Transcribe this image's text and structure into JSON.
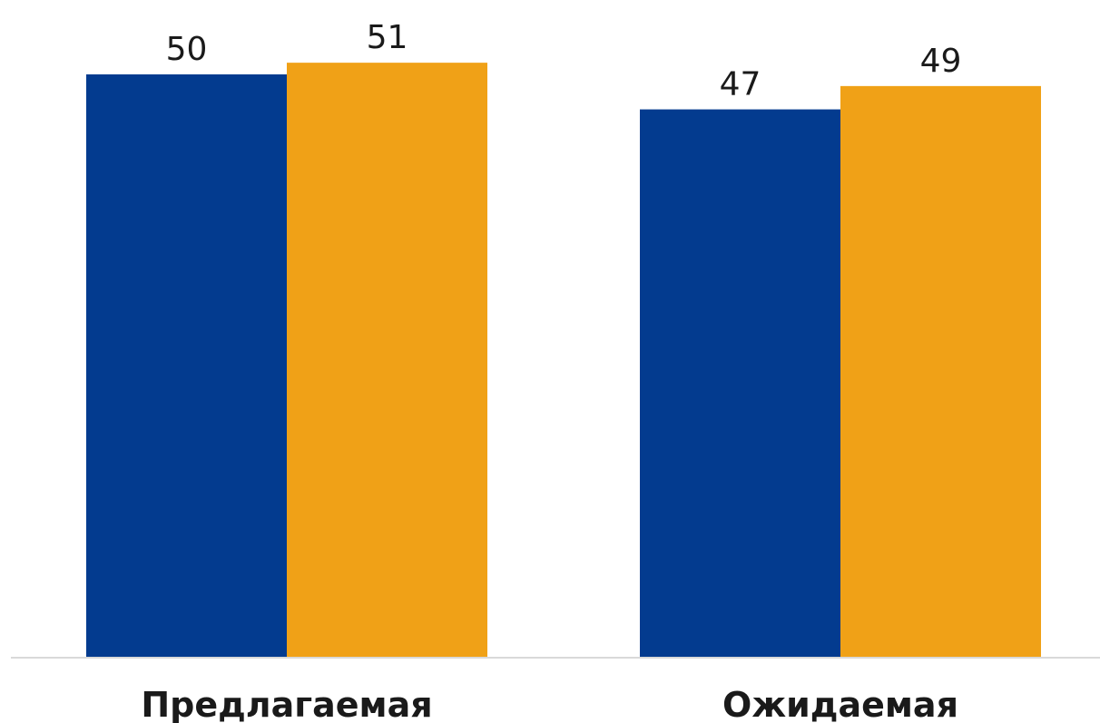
{
  "chart_data": {
    "type": "bar",
    "categories": [
      "Предлагаемая",
      "Ожидаемая"
    ],
    "series": [
      {
        "values": [
          50,
          51
        ],
        "color": "#033B8F"
      },
      {
        "values": [
          47,
          49
        ],
        "color": "#F0A117"
      }
    ],
    "grouping": "by-category-pairs",
    "ylim": [
      0,
      60
    ],
    "grid": false,
    "legend": "none",
    "axis_line_color": "#D9D9D9"
  }
}
